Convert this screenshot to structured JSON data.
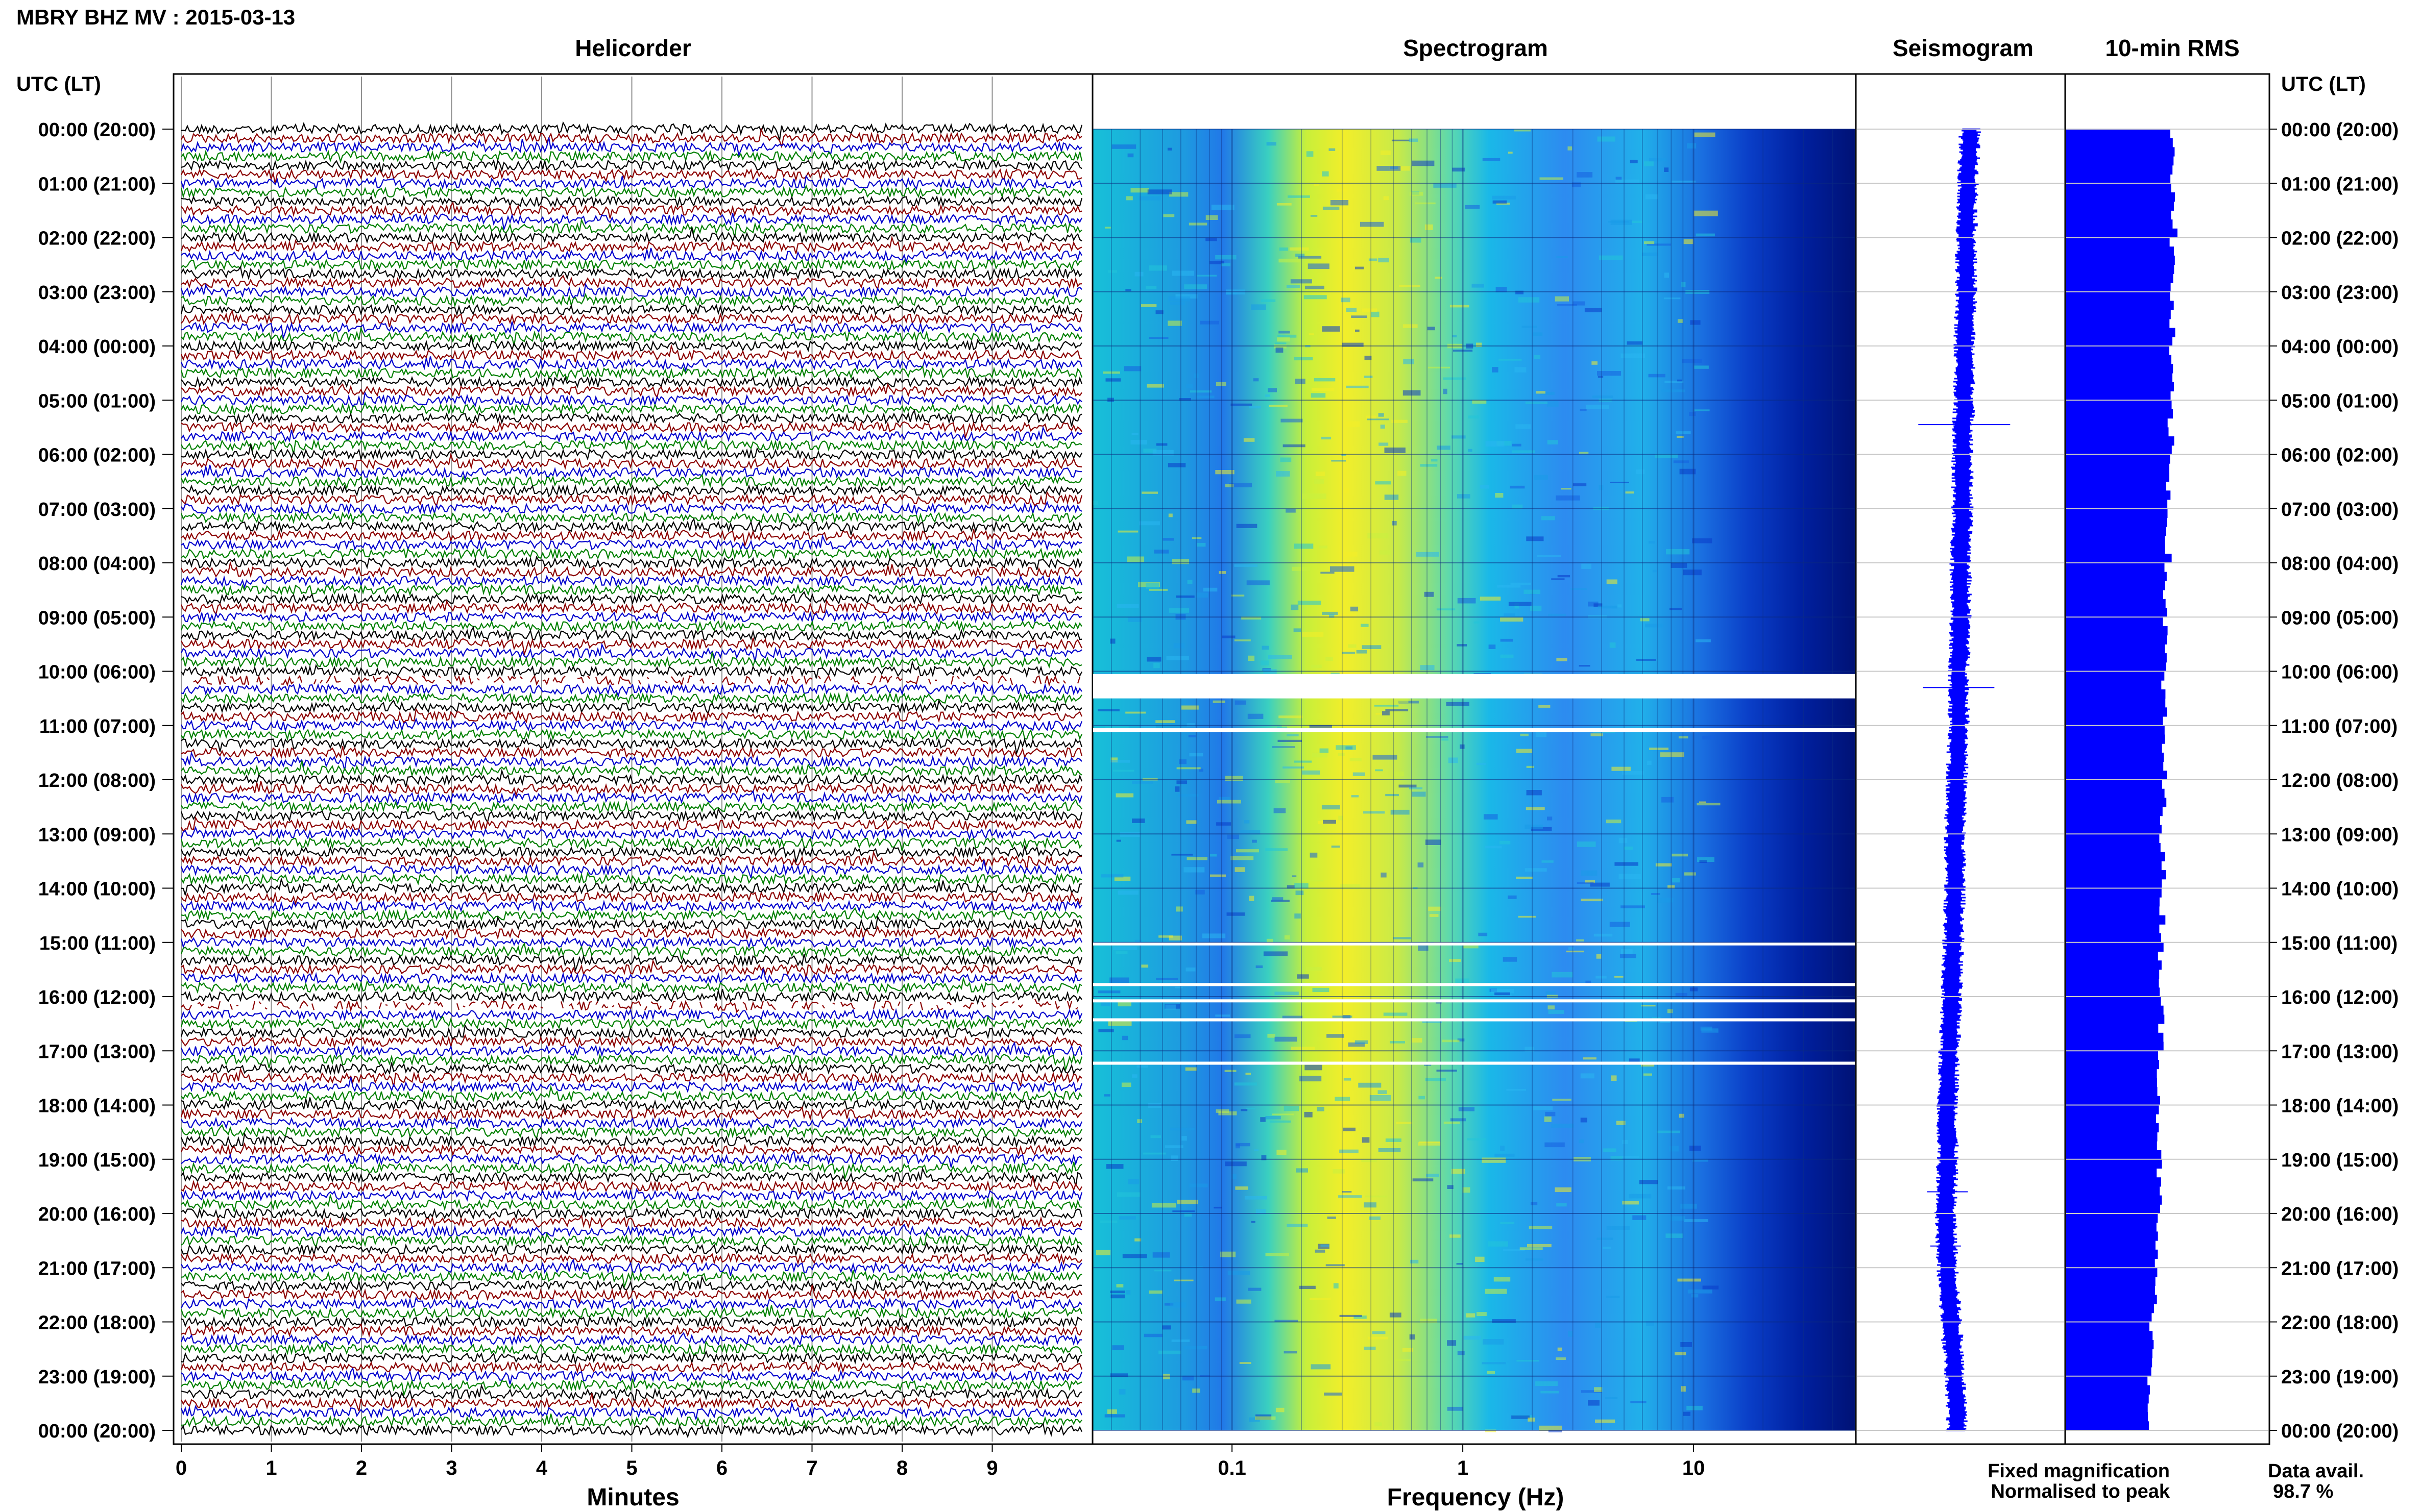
{
  "title": "MBRY BHZ MV : 2015-03-13",
  "panels": {
    "helicorder": "Helicorder",
    "spectrogram": "Spectrogram",
    "seismogram": "Seismogram",
    "rms": "10-min RMS"
  },
  "time_axis_label": "UTC (LT)",
  "hour_labels": [
    "00:00 (20:00)",
    "01:00 (21:00)",
    "02:00 (22:00)",
    "03:00 (23:00)",
    "04:00 (00:00)",
    "05:00 (01:00)",
    "06:00 (02:00)",
    "07:00 (03:00)",
    "08:00 (04:00)",
    "09:00 (05:00)",
    "10:00 (06:00)",
    "11:00 (07:00)",
    "12:00 (08:00)",
    "13:00 (09:00)",
    "14:00 (10:00)",
    "15:00 (11:00)",
    "16:00 (12:00)",
    "17:00 (13:00)",
    "18:00 (14:00)",
    "19:00 (15:00)",
    "20:00 (16:00)",
    "21:00 (17:00)",
    "22:00 (18:00)",
    "23:00 (19:00)",
    "00:00 (20:00)"
  ],
  "legend": {
    "fixed": "Fixed magnification",
    "normalised": "Normalised to peak",
    "fixed_color": "#0000ff",
    "normalised_color": "#ff0000"
  },
  "availability": {
    "label": "Data avail.",
    "value": "98.7 %"
  },
  "colors": {
    "trace_cycle": [
      "#000000",
      "#8b0000",
      "#0000cd",
      "#008000"
    ],
    "seismogram": "#0000ff",
    "rms": "#0000ff"
  },
  "chart_data": [
    {
      "type": "line",
      "panel": "Helicorder",
      "xlabel": "Minutes",
      "x_ticks": [
        "0",
        "1",
        "2",
        "3",
        "4",
        "5",
        "6",
        "7",
        "8",
        "9"
      ],
      "xlim": [
        0,
        10
      ],
      "row_minutes": 10,
      "rows": 144,
      "gaps_utc_hours": [
        10.15,
        16.2
      ]
    },
    {
      "type": "heatmap",
      "panel": "Spectrogram",
      "xlabel": "Frequency (Hz)",
      "x_scale": "log",
      "x_ticks": [
        "0.1",
        "1",
        "10"
      ],
      "xlim": [
        0.025,
        50
      ],
      "peak_band_hz": [
        0.2,
        0.6
      ],
      "gaps_utc_hours": [
        [
          10.05,
          10.5
        ],
        [
          11.05,
          11.12
        ],
        [
          15.0,
          15.05
        ],
        [
          15.75,
          15.8
        ],
        [
          16.05,
          16.1
        ],
        [
          16.4,
          16.45
        ],
        [
          17.2,
          17.25
        ]
      ]
    },
    {
      "type": "line",
      "panel": "Seismogram",
      "series": [
        {
          "values": [
            0.05,
            0.04,
            0.03,
            0.03,
            0.02,
            0.02,
            0.01,
            0.01,
            0.0,
            0.0,
            -0.01,
            -0.01,
            -0.02,
            -0.03,
            -0.03,
            -0.04,
            -0.05,
            -0.06,
            -0.07,
            -0.07,
            -0.08,
            -0.07,
            -0.05,
            -0.03,
            -0.02
          ]
        }
      ],
      "spikes_utc_hours": [
        5.45,
        10.3,
        19.6,
        20.6
      ]
    },
    {
      "type": "bar",
      "panel": "10-min RMS",
      "orientation": "horizontal",
      "bin_minutes": 10,
      "hourly_rms_relative": [
        0.95,
        0.95,
        0.94,
        0.93,
        0.92,
        0.92,
        0.91,
        0.9,
        0.88,
        0.87,
        0.86,
        0.86,
        0.86,
        0.85,
        0.85,
        0.84,
        0.84,
        0.83,
        0.82,
        0.82,
        0.8,
        0.78,
        0.76,
        0.74
      ]
    }
  ]
}
